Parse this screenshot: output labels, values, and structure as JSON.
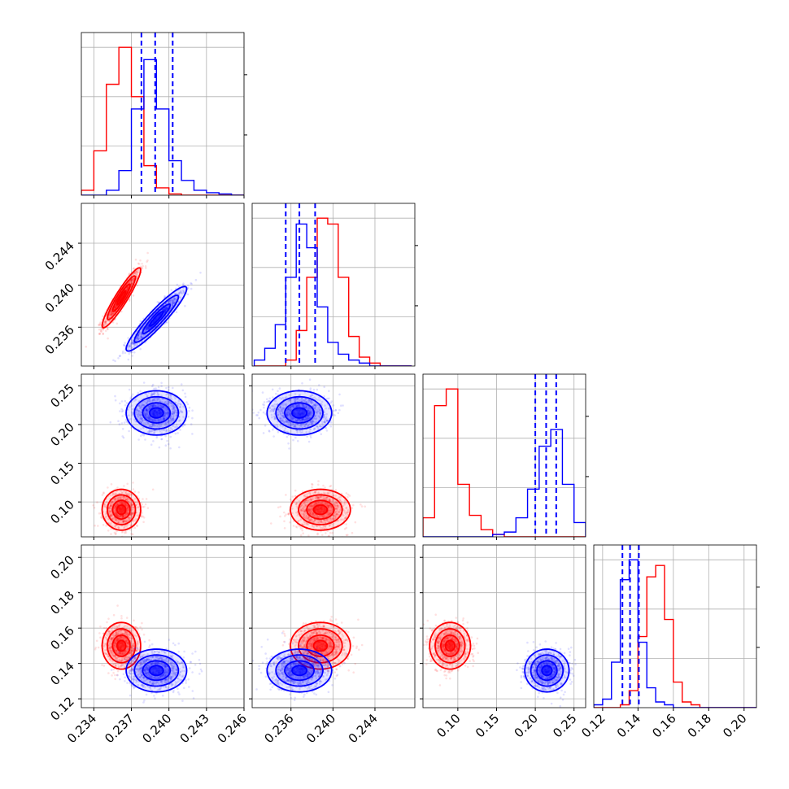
{
  "chart_data": {
    "type": "corner",
    "title": "",
    "colors": {
      "red": "#ff0000",
      "blue": "#0000ff"
    },
    "axes": {
      "p0": {
        "range": [
          0.233,
          0.246
        ],
        "ticks": [
          "0.234",
          "0.237",
          "0.240",
          "0.243",
          "0.246"
        ],
        "tick_values": [
          0.234,
          0.237,
          0.24,
          0.243,
          0.246
        ]
      },
      "p1": {
        "range": [
          0.2323,
          0.2478
        ],
        "ticks": [
          "0.236",
          "0.240",
          "0.244"
        ],
        "tick_values": [
          0.236,
          0.24,
          0.244
        ]
      },
      "p2": {
        "range": [
          0.055,
          0.265
        ],
        "ticks": [
          "0.10",
          "0.15",
          "0.20",
          "0.25"
        ],
        "tick_values": [
          0.1,
          0.15,
          0.2,
          0.25
        ]
      },
      "p3": {
        "range": [
          0.115,
          0.207
        ],
        "ticks": [
          "0.12",
          "0.14",
          "0.16",
          "0.18",
          "0.20"
        ],
        "tick_values": [
          0.12,
          0.14,
          0.16,
          0.18,
          0.2
        ]
      }
    },
    "series": [
      {
        "color": "red",
        "means": [
          0.2362,
          0.2388,
          0.09,
          0.15
        ],
        "sds": [
          0.0007,
          0.0013,
          0.012,
          0.006
        ],
        "correlation_p0_p1": 0.93
      },
      {
        "color": "blue",
        "means": [
          0.239,
          0.2368,
          0.215,
          0.136
        ],
        "sds": [
          0.0011,
          0.0014,
          0.013,
          0.0055
        ],
        "correlation_p0_p1": 0.93
      }
    ],
    "histograms": {
      "p0": {
        "bins": [
          0.233,
          0.234,
          0.235,
          0.236,
          0.237,
          0.238,
          0.239,
          0.24,
          0.241,
          0.242,
          0.243,
          0.244,
          0.245,
          0.246
        ],
        "red": [
          2,
          18,
          45,
          60,
          40,
          12,
          3,
          0.5,
          0,
          0,
          0,
          0,
          0
        ],
        "blue": [
          0,
          0,
          2,
          10,
          35,
          55,
          35,
          14,
          6,
          2,
          1,
          0.5,
          0
        ]
      },
      "p1": {
        "bins": [
          0.2325,
          0.2335,
          0.2345,
          0.2355,
          0.2365,
          0.2375,
          0.2385,
          0.2395,
          0.2405,
          0.2415,
          0.2425,
          0.2435,
          0.2445,
          0.2455,
          0.2465,
          0.2475
        ],
        "red": [
          0,
          0,
          0,
          2,
          12,
          30,
          50,
          48,
          30,
          10,
          3,
          1,
          0,
          0,
          0
        ],
        "blue": [
          2,
          6,
          14,
          30,
          48,
          40,
          20,
          8,
          4,
          2,
          1,
          0,
          0,
          0,
          0
        ]
      },
      "p2": {
        "bins": [
          0.055,
          0.07,
          0.085,
          0.1,
          0.115,
          0.13,
          0.145,
          0.16,
          0.175,
          0.19,
          0.205,
          0.22,
          0.235,
          0.25,
          0.265
        ],
        "red": [
          8,
          55,
          62,
          22,
          9,
          3,
          1,
          0,
          0,
          0,
          0,
          0,
          0,
          0
        ],
        "blue": [
          0,
          0,
          0,
          0,
          0,
          0,
          1,
          2,
          8,
          20,
          38,
          45,
          22,
          6
        ]
      },
      "p3": {
        "bins": [
          0.115,
          0.12,
          0.125,
          0.13,
          0.135,
          0.14,
          0.145,
          0.15,
          0.155,
          0.16,
          0.165,
          0.17,
          0.175,
          0.18,
          0.185,
          0.19,
          0.195,
          0.2,
          0.207
        ],
        "red": [
          0,
          0,
          0,
          1,
          6,
          25,
          46,
          50,
          31,
          9,
          2,
          1,
          0,
          0,
          0,
          0,
          0,
          0
        ],
        "blue": [
          1,
          3,
          16,
          45,
          52,
          23,
          7,
          2,
          1,
          0,
          0,
          0,
          0,
          0,
          0,
          0,
          0,
          0
        ]
      }
    },
    "quantile_lines": {
      "color": "blue",
      "p0": [
        0.2378,
        0.2389,
        0.2403
      ],
      "p1": [
        0.2355,
        0.2368,
        0.2383
      ],
      "p2": [
        0.2,
        0.214,
        0.227
      ],
      "p3": [
        0.1312,
        0.1355,
        0.1405
      ]
    },
    "grid": true,
    "legend": "none"
  }
}
